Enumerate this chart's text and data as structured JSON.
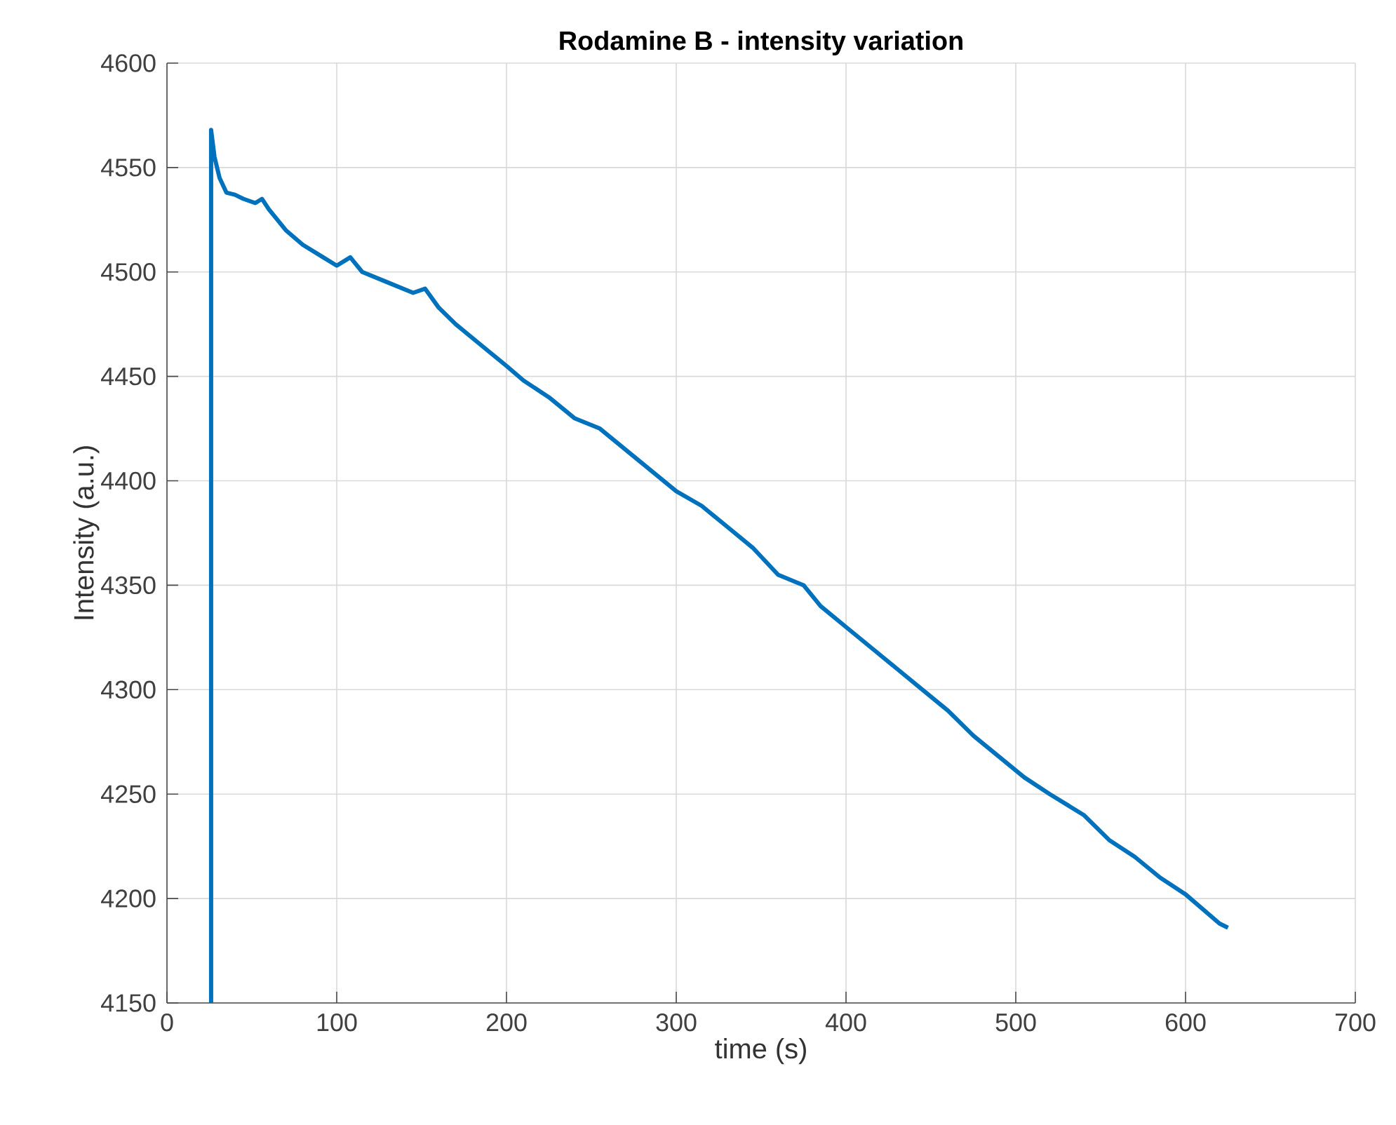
{
  "chart_data": {
    "type": "line",
    "title": "Rodamine B - intensity variation",
    "xlabel": "time (s)",
    "ylabel": "Intensity (a.u.)",
    "series": [
      {
        "color": "#0072bd",
        "x": [
          26,
          26,
          28,
          31,
          35,
          40,
          45,
          52,
          56,
          60,
          70,
          80,
          90,
          100,
          108,
          115,
          130,
          145,
          152,
          160,
          170,
          185,
          200,
          210,
          225,
          240,
          255,
          270,
          285,
          300,
          315,
          330,
          345,
          360,
          375,
          385,
          400,
          415,
          430,
          445,
          460,
          475,
          490,
          505,
          520,
          540,
          555,
          570,
          585,
          600,
          610,
          620,
          625
        ],
        "values": [
          4150,
          4568,
          4555,
          4545,
          4538,
          4537,
          4535,
          4533,
          4535,
          4530,
          4520,
          4513,
          4508,
          4503,
          4507,
          4500,
          4495,
          4490,
          4492,
          4483,
          4475,
          4465,
          4455,
          4448,
          4440,
          4430,
          4425,
          4415,
          4405,
          4395,
          4388,
          4378,
          4368,
          4355,
          4350,
          4340,
          4330,
          4320,
          4310,
          4300,
          4290,
          4278,
          4268,
          4258,
          4250,
          4240,
          4228,
          4220,
          4210,
          4202,
          4195,
          4188,
          4186
        ]
      }
    ],
    "xlim": [
      0,
      700
    ],
    "ylim": [
      4150,
      4600
    ],
    "xticks": [
      0,
      100,
      200,
      300,
      400,
      500,
      600,
      700
    ],
    "yticks": [
      4150,
      4200,
      4250,
      4300,
      4350,
      4400,
      4450,
      4500,
      4550,
      4600
    ],
    "grid": true,
    "marker": "none",
    "line_style": "solid"
  }
}
